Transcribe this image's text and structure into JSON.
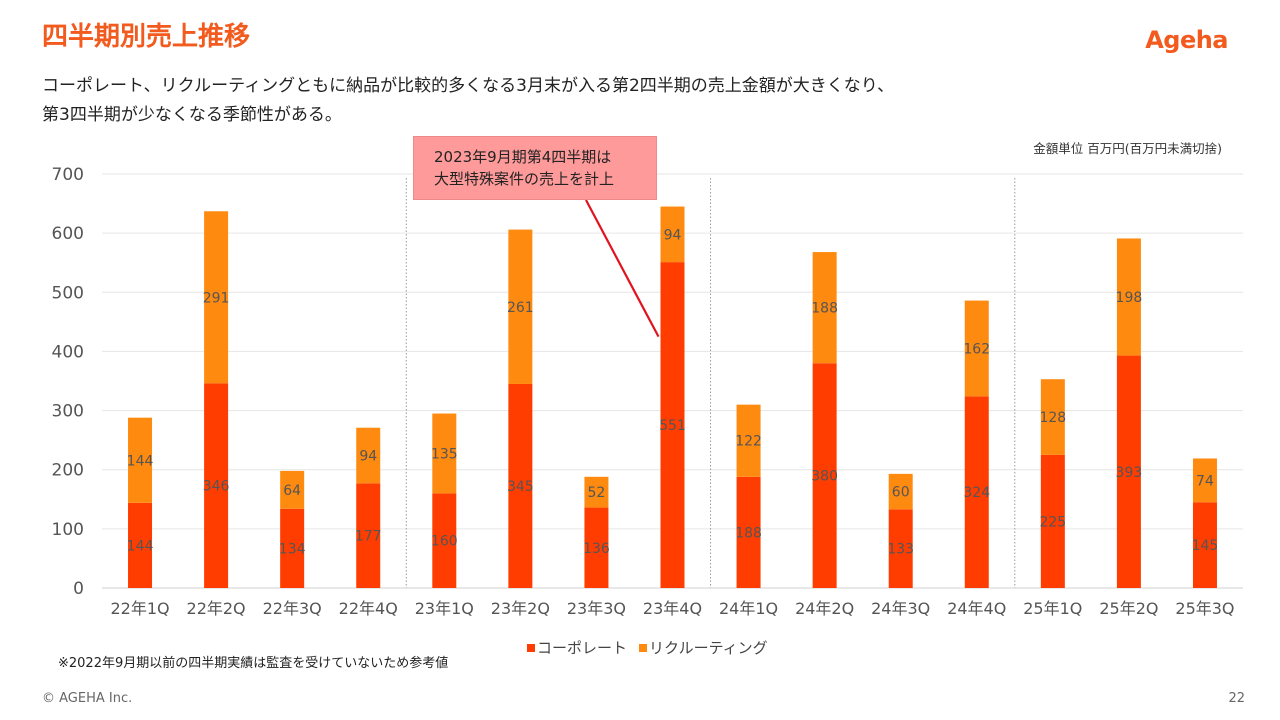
{
  "header": {
    "title": "四半期別売上推移",
    "logo_text": "Ageha",
    "description_line1": "コーポレート、リクルーティングともに納品が比較的多くなる3月末が入る第2四半期の売上金額が大きくなり、",
    "description_line2": "第3四半期が少なくなる季節性がある。",
    "unit_note": "金額単位 百万円(百万円未満切捨)"
  },
  "callout": {
    "line1": "2023年9月期第4四半期は",
    "line2": "大型特殊案件の売上を計上"
  },
  "footer": {
    "footnote": "※2022年9月期以前の四半期実績は監査を受けていないため参考値",
    "copyright": "© AGEHA Inc.",
    "page_number": "22"
  },
  "colors": {
    "accent": "#f25a1e",
    "corporate": "#ff3d00",
    "recruiting": "#ff8a10",
    "callout_bg": "#ff9a9a",
    "callout_line": "#e0141e"
  },
  "chart_data": {
    "type": "bar",
    "stacked": true,
    "categories": [
      "22年1Q",
      "22年2Q",
      "22年3Q",
      "22年4Q",
      "23年1Q",
      "23年2Q",
      "23年3Q",
      "23年4Q",
      "24年1Q",
      "24年2Q",
      "24年3Q",
      "24年4Q",
      "25年1Q",
      "25年2Q",
      "25年3Q"
    ],
    "series": [
      {
        "name": "コーポレート",
        "values": [
          144,
          346,
          134,
          177,
          160,
          345,
          136,
          551,
          188,
          380,
          133,
          324,
          225,
          393,
          145
        ]
      },
      {
        "name": "リクルーティング",
        "values": [
          144,
          291,
          64,
          94,
          135,
          261,
          52,
          94,
          122,
          188,
          60,
          162,
          128,
          198,
          74
        ]
      }
    ],
    "yticks": [
      0,
      100,
      200,
      300,
      400,
      500,
      600,
      700
    ],
    "ylim": [
      0,
      700
    ],
    "grid": true,
    "legend_position": "bottom",
    "fiscal_year_separators_after": [
      "22年4Q",
      "23年4Q",
      "24年4Q"
    ],
    "callout_target": "23年4Q"
  }
}
